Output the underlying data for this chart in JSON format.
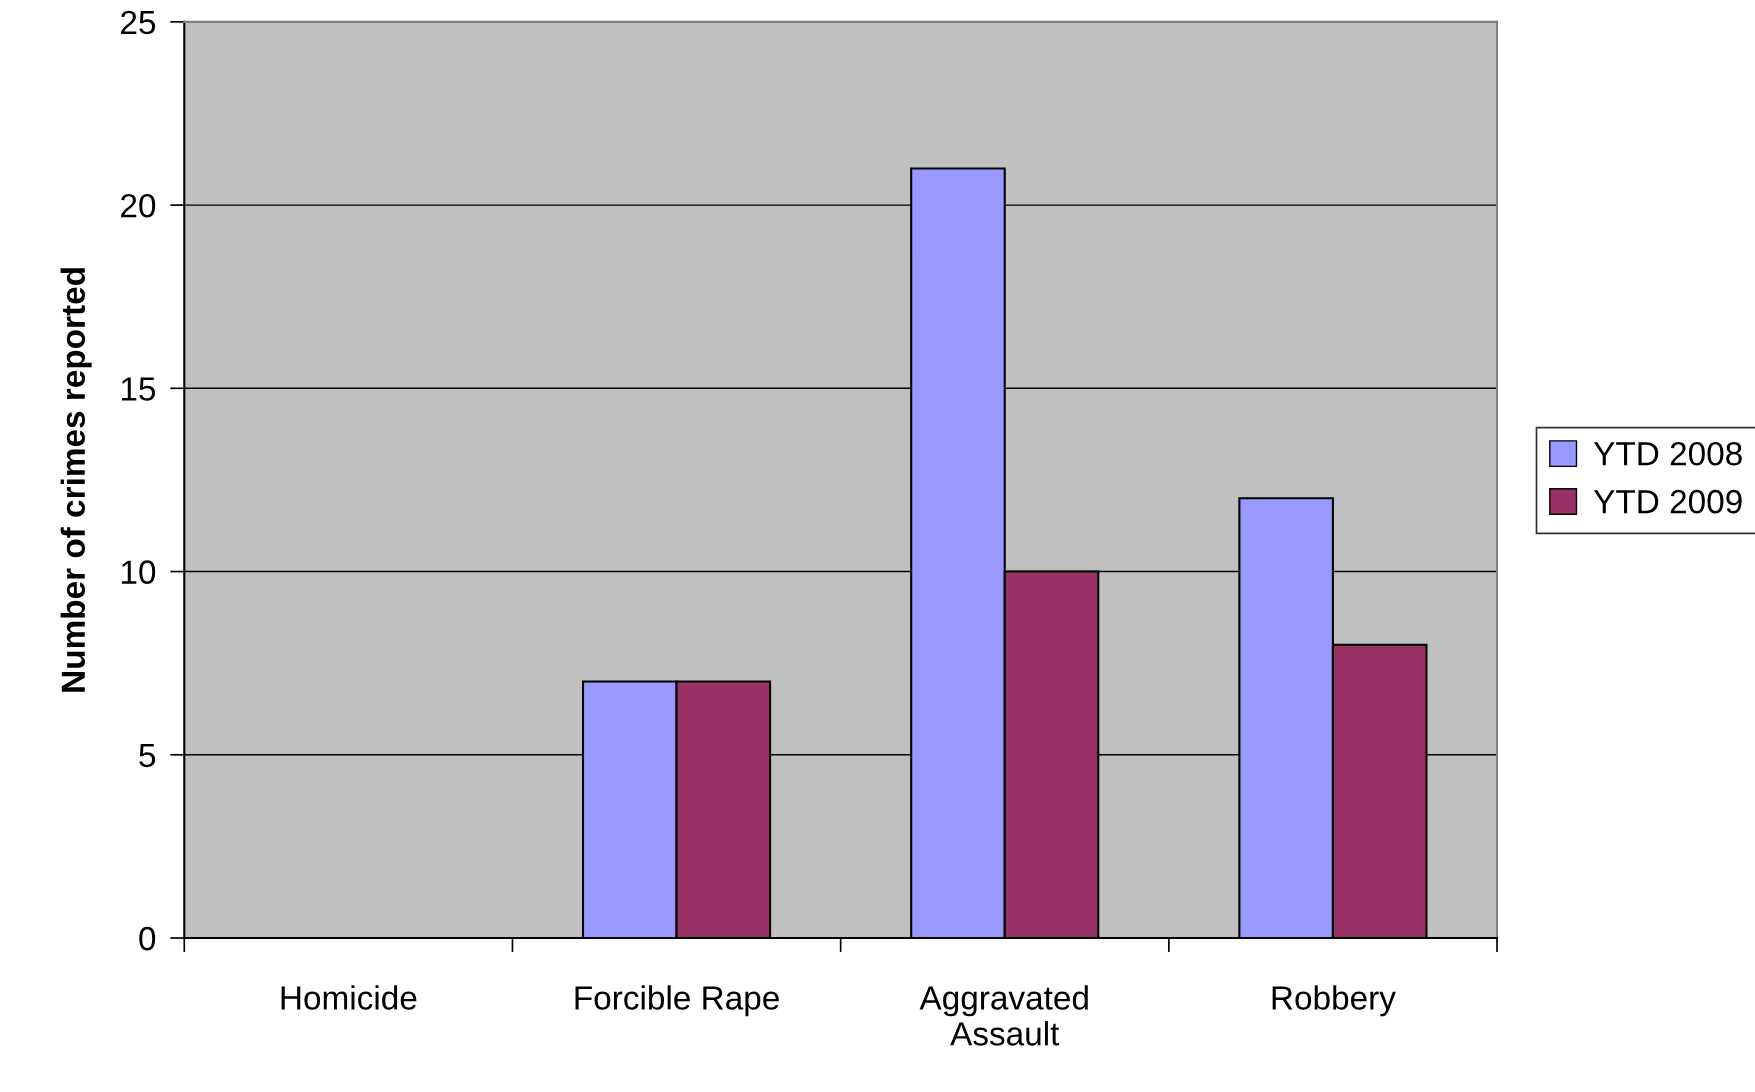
{
  "chart_data": {
    "type": "bar",
    "ylabel": "Number of crimes reported",
    "categories": [
      "Homicide",
      "Forcible Rape",
      "Aggravated\nAssault",
      "Robbery"
    ],
    "series": [
      {
        "name": "YTD 2008",
        "color": "#9999ff",
        "values": [
          0,
          7,
          21,
          12
        ]
      },
      {
        "name": "YTD 2009",
        "color": "#993366",
        "values": [
          0,
          7,
          10,
          8
        ]
      }
    ],
    "ylim": [
      0,
      25
    ],
    "yticks": [
      0,
      5,
      10,
      15,
      20,
      25
    ],
    "grid": "y",
    "legend": "right"
  }
}
